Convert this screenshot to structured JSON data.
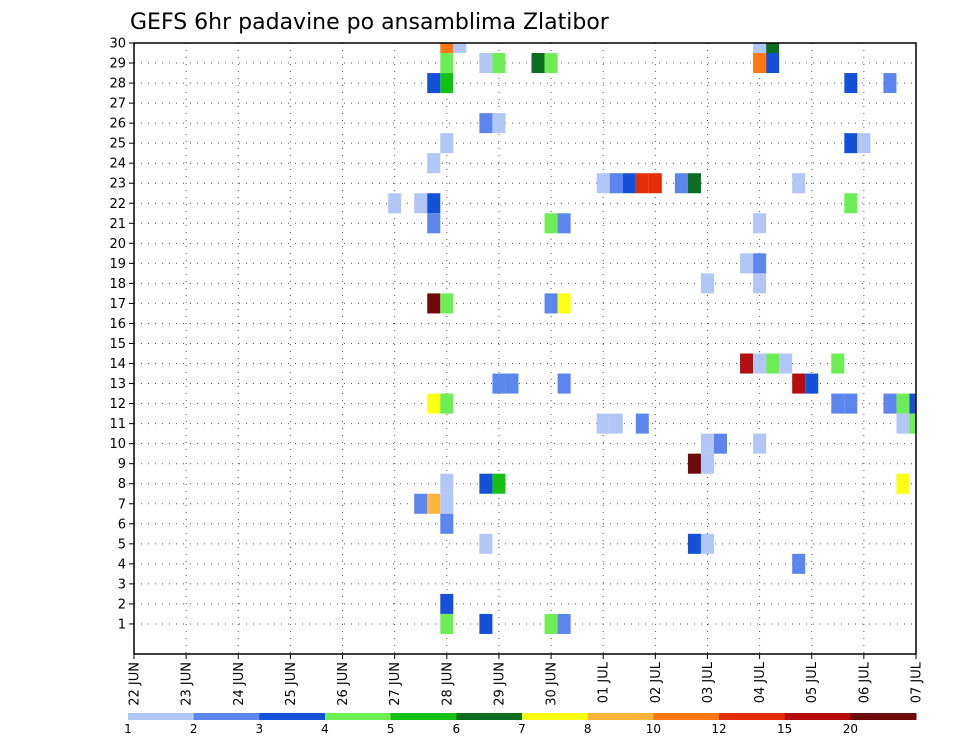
{
  "chart_data": {
    "type": "heatmap",
    "title": "GEFS 6hr padavine po ansamblima Zlatibor",
    "xlabel": "",
    "ylabel": "",
    "x_ticks": [
      "22 JUN",
      "23 JUN",
      "24 JUN",
      "25 JUN",
      "26 JUN",
      "27 JUN",
      "28 JUN",
      "29 JUN",
      "30 JUN",
      "01 JUL",
      "02 JUL",
      "03 JUL",
      "04 JUL",
      "05 JUL",
      "06 JUL",
      "07 JUL"
    ],
    "y_ticks": [
      1,
      2,
      3,
      4,
      5,
      6,
      7,
      8,
      9,
      10,
      11,
      12,
      13,
      14,
      15,
      16,
      17,
      18,
      19,
      20,
      21,
      22,
      23,
      24,
      25,
      26,
      27,
      28,
      29,
      30
    ],
    "ylim": [
      0,
      30
    ],
    "x_step_hours": 6,
    "grid": true,
    "legend_position": "bottom",
    "legend": {
      "labels": [
        "1",
        "2",
        "3",
        "4",
        "5",
        "6",
        "7",
        "8",
        "10",
        "12",
        "15",
        "20"
      ],
      "colors": [
        "#b3c7f7",
        "#5c85ed",
        "#1450d8",
        "#6eee55",
        "#14c014",
        "#0c6e1e",
        "#ffff14",
        "#ffb43c",
        "#ff7814",
        "#e62d0a",
        "#b40e0e",
        "#6e0a0a"
      ]
    },
    "cells": [
      {
        "x": "28 JUN 00",
        "member": 30,
        "class": 8
      },
      {
        "x": "28 JUN 06",
        "member": 30,
        "class": 0
      },
      {
        "x": "04 JUL 00",
        "member": 30,
        "class": 0
      },
      {
        "x": "04 JUL 06",
        "member": 30,
        "class": 5
      },
      {
        "x": "28 JUN 00",
        "member": 29,
        "class": 3
      },
      {
        "x": "28 JUN 18",
        "member": 29,
        "class": 0
      },
      {
        "x": "29 JUN 00",
        "member": 29,
        "class": 3
      },
      {
        "x": "29 JUN 18",
        "member": 29,
        "class": 5
      },
      {
        "x": "30 JUN 00",
        "member": 29,
        "class": 3
      },
      {
        "x": "04 JUL 00",
        "member": 29,
        "class": 8
      },
      {
        "x": "04 JUL 06",
        "member": 29,
        "class": 2
      },
      {
        "x": "27 JUN 18",
        "member": 28,
        "class": 2
      },
      {
        "x": "28 JUN 00",
        "member": 28,
        "class": 4
      },
      {
        "x": "05 JUL 18",
        "member": 28,
        "class": 2
      },
      {
        "x": "06 JUL 12",
        "member": 28,
        "class": 1
      },
      {
        "x": "28 JUN 18",
        "member": 26,
        "class": 1
      },
      {
        "x": "29 JUN 00",
        "member": 26,
        "class": 0
      },
      {
        "x": "28 JUN 00",
        "member": 25,
        "class": 0
      },
      {
        "x": "05 JUL 18",
        "member": 25,
        "class": 2
      },
      {
        "x": "06 JUL 00",
        "member": 25,
        "class": 0
      },
      {
        "x": "27 JUN 18",
        "member": 24,
        "class": 0
      },
      {
        "x": "01 JUL 00",
        "member": 23,
        "class": 0
      },
      {
        "x": "01 JUL 06",
        "member": 23,
        "class": 1
      },
      {
        "x": "01 JUL 12",
        "member": 23,
        "class": 2
      },
      {
        "x": "01 JUL 18",
        "member": 23,
        "class": 9
      },
      {
        "x": "02 JUL 00",
        "member": 23,
        "class": 9
      },
      {
        "x": "02 JUL 12",
        "member": 23,
        "class": 1
      },
      {
        "x": "02 JUL 18",
        "member": 23,
        "class": 5
      },
      {
        "x": "04 JUL 18",
        "member": 23,
        "class": 0
      },
      {
        "x": "27 JUN 00",
        "member": 22,
        "class": 0
      },
      {
        "x": "27 JUN 12",
        "member": 22,
        "class": 0
      },
      {
        "x": "27 JUN 18",
        "member": 22,
        "class": 2
      },
      {
        "x": "05 JUL 18",
        "member": 22,
        "class": 3
      },
      {
        "x": "27 JUN 18",
        "member": 21,
        "class": 1
      },
      {
        "x": "30 JUN 00",
        "member": 21,
        "class": 3
      },
      {
        "x": "30 JUN 06",
        "member": 21,
        "class": 1
      },
      {
        "x": "04 JUL 00",
        "member": 21,
        "class": 0
      },
      {
        "x": "03 JUL 18",
        "member": 19,
        "class": 0
      },
      {
        "x": "04 JUL 00",
        "member": 19,
        "class": 1
      },
      {
        "x": "03 JUL 00",
        "member": 18,
        "class": 0
      },
      {
        "x": "04 JUL 00",
        "member": 18,
        "class": 0
      },
      {
        "x": "27 JUN 18",
        "member": 17,
        "class": 11
      },
      {
        "x": "28 JUN 00",
        "member": 17,
        "class": 3
      },
      {
        "x": "30 JUN 00",
        "member": 17,
        "class": 1
      },
      {
        "x": "30 JUN 06",
        "member": 17,
        "class": 6
      },
      {
        "x": "03 JUL 18",
        "member": 14,
        "class": 10
      },
      {
        "x": "04 JUL 00",
        "member": 14,
        "class": 0
      },
      {
        "x": "04 JUL 06",
        "member": 14,
        "class": 3
      },
      {
        "x": "04 JUL 12",
        "member": 14,
        "class": 0
      },
      {
        "x": "05 JUL 12",
        "member": 14,
        "class": 3
      },
      {
        "x": "29 JUN 00",
        "member": 13,
        "class": 1
      },
      {
        "x": "29 JUN 06",
        "member": 13,
        "class": 1
      },
      {
        "x": "30 JUN 06",
        "member": 13,
        "class": 1
      },
      {
        "x": "04 JUL 18",
        "member": 13,
        "class": 10
      },
      {
        "x": "05 JUL 00",
        "member": 13,
        "class": 2
      },
      {
        "x": "27 JUN 18",
        "member": 12,
        "class": 6
      },
      {
        "x": "28 JUN 00",
        "member": 12,
        "class": 3
      },
      {
        "x": "05 JUL 12",
        "member": 12,
        "class": 1
      },
      {
        "x": "05 JUL 18",
        "member": 12,
        "class": 1
      },
      {
        "x": "06 JUL 12",
        "member": 12,
        "class": 1
      },
      {
        "x": "06 JUL 18",
        "member": 12,
        "class": 3
      },
      {
        "x": "07 JUL 00",
        "member": 12,
        "class": 2
      },
      {
        "x": "01 JUL 00",
        "member": 11,
        "class": 0
      },
      {
        "x": "01 JUL 06",
        "member": 11,
        "class": 0
      },
      {
        "x": "01 JUL 18",
        "member": 11,
        "class": 1
      },
      {
        "x": "06 JUL 18",
        "member": 11,
        "class": 0
      },
      {
        "x": "07 JUL 00",
        "member": 11,
        "class": 3
      },
      {
        "x": "03 JUL 00",
        "member": 10,
        "class": 0
      },
      {
        "x": "03 JUL 06",
        "member": 10,
        "class": 1
      },
      {
        "x": "04 JUL 00",
        "member": 10,
        "class": 0
      },
      {
        "x": "02 JUL 18",
        "member": 9,
        "class": 11
      },
      {
        "x": "03 JUL 00",
        "member": 9,
        "class": 0
      },
      {
        "x": "28 JUN 00",
        "member": 8,
        "class": 0
      },
      {
        "x": "28 JUN 18",
        "member": 8,
        "class": 2
      },
      {
        "x": "29 JUN 00",
        "member": 8,
        "class": 4
      },
      {
        "x": "06 JUL 18",
        "member": 8,
        "class": 6
      },
      {
        "x": "27 JUN 12",
        "member": 7,
        "class": 1
      },
      {
        "x": "27 JUN 18",
        "member": 7,
        "class": 7
      },
      {
        "x": "28 JUN 00",
        "member": 7,
        "class": 0
      },
      {
        "x": "28 JUN 00",
        "member": 6,
        "class": 1
      },
      {
        "x": "28 JUN 18",
        "member": 5,
        "class": 0
      },
      {
        "x": "02 JUL 18",
        "member": 5,
        "class": 2
      },
      {
        "x": "03 JUL 00",
        "member": 5,
        "class": 0
      },
      {
        "x": "04 JUL 18",
        "member": 4,
        "class": 1
      },
      {
        "x": "28 JUN 00",
        "member": 2,
        "class": 2
      },
      {
        "x": "28 JUN 00",
        "member": 1,
        "class": 3
      },
      {
        "x": "28 JUN 18",
        "member": 1,
        "class": 2
      },
      {
        "x": "30 JUN 00",
        "member": 1,
        "class": 3
      },
      {
        "x": "30 JUN 06",
        "member": 1,
        "class": 1
      }
    ]
  }
}
